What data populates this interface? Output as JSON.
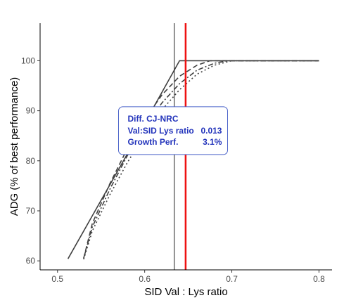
{
  "chart_data": {
    "type": "line",
    "xlabel": "SID Val : Lys ratio",
    "ylabel": "ADG (% of best performance)",
    "xlim": [
      0.48,
      0.815
    ],
    "ylim": [
      58.2,
      107.5
    ],
    "x_ticks": [
      0.5,
      0.6,
      0.7,
      0.8
    ],
    "y_ticks": [
      60,
      70,
      80,
      90,
      100
    ],
    "x_tick_labels": [
      "0.5",
      "0.6",
      "0.7",
      "0.8"
    ],
    "y_tick_labels": [
      "60",
      "70",
      "80",
      "90",
      "100"
    ],
    "grid": false,
    "series": [
      {
        "style": "solid",
        "color": "#404040",
        "points": [
          [
            0.512,
            60.4
          ],
          [
            0.6,
            87.5
          ],
          [
            0.64,
            100
          ],
          [
            0.8,
            100
          ]
        ]
      },
      {
        "style": "dashed",
        "color": "#404040",
        "points": [
          [
            0.53,
            60.5
          ],
          [
            0.54,
            67.5
          ],
          [
            0.56,
            75.4
          ],
          [
            0.58,
            82.4
          ],
          [
            0.6,
            88.3
          ],
          [
            0.62,
            93.2
          ],
          [
            0.64,
            96.9
          ],
          [
            0.66,
            99.1
          ],
          [
            0.675,
            100
          ],
          [
            0.8,
            100
          ]
        ]
      },
      {
        "style": "dotdash",
        "color": "#404040",
        "points": [
          [
            0.53,
            60.5
          ],
          [
            0.54,
            66.8
          ],
          [
            0.56,
            74.3
          ],
          [
            0.58,
            81.0
          ],
          [
            0.6,
            86.8
          ],
          [
            0.62,
            91.6
          ],
          [
            0.64,
            95.4
          ],
          [
            0.66,
            98.1
          ],
          [
            0.68,
            99.5
          ],
          [
            0.695,
            100
          ],
          [
            0.8,
            100
          ]
        ]
      },
      {
        "style": "dotted",
        "color": "#404040",
        "points": [
          [
            0.53,
            60.3
          ],
          [
            0.54,
            66.0
          ],
          [
            0.56,
            73.2
          ],
          [
            0.58,
            79.6
          ],
          [
            0.6,
            85.3
          ],
          [
            0.62,
            90.2
          ],
          [
            0.64,
            94.2
          ],
          [
            0.66,
            97.3
          ],
          [
            0.68,
            99.1
          ],
          [
            0.7,
            100
          ],
          [
            0.8,
            100
          ]
        ]
      }
    ],
    "vlines": [
      {
        "x": 0.634,
        "color": "#222222",
        "width": 1
      },
      {
        "x": 0.647,
        "color": "#ee1111",
        "width": 2.5
      }
    ],
    "annotation": {
      "anchor_x": 0.57,
      "anchor_y": 90.8,
      "title": "Diff. CJ-NRC",
      "rows": [
        {
          "label": "Val:SID Lys ratio",
          "value": "0.013"
        },
        {
          "label": "Growth Perf.",
          "value": "3.1%"
        }
      ],
      "border_color": "#4b63c9",
      "text_color": "#2233bb"
    }
  }
}
